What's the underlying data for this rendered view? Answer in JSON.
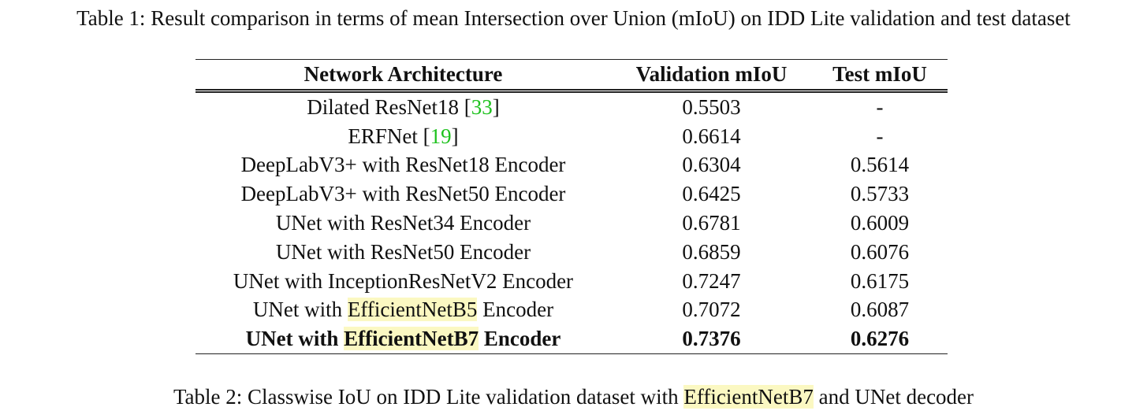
{
  "captions": {
    "table1": "Table 1: Result comparison in terms of mean Intersection over Union (mIoU) on IDD Lite validation and test dataset",
    "table2": [
      "Table 2: Classwise IoU on IDD Lite validation dataset with ",
      "EfficientNetB7",
      " and UNet decoder"
    ]
  },
  "table": {
    "header": [
      "Network Architecture",
      "Validation mIoU",
      "Test mIoU"
    ],
    "rows": [
      [
        [
          "Dilated ResNet18 [",
          "33",
          "]"
        ],
        "0.5503",
        "-"
      ],
      [
        [
          "ERFNet [",
          "19",
          "]"
        ],
        "0.6614",
        "-"
      ],
      [
        [
          "DeepLabV3+ with ResNet18 Encoder"
        ],
        "0.6304",
        "0.5614"
      ],
      [
        [
          "DeepLabV3+ with ResNet50 Encoder"
        ],
        "0.6425",
        "0.5733"
      ],
      [
        [
          "UNet with ResNet34 Encoder"
        ],
        "0.6781",
        "0.6009"
      ],
      [
        [
          "UNet with ResNet50 Encoder"
        ],
        "0.6859",
        "0.6076"
      ],
      [
        [
          "UNet with InceptionResNetV2 Encoder"
        ],
        "0.7247",
        "0.6175"
      ],
      [
        [
          "UNet with ",
          "EfficientNetB5",
          " Encoder"
        ],
        "0.7072",
        "0.6087"
      ],
      [
        [
          "UNet with ",
          "EfficientNetB7",
          " Encoder"
        ],
        "0.7376",
        "0.6276"
      ]
    ]
  }
}
